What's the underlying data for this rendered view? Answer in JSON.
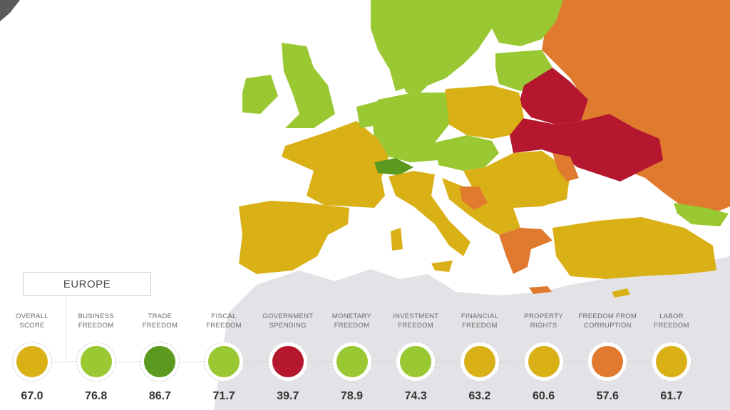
{
  "colors": {
    "water": "#ffffff",
    "non_europe_land": "#e3e3e7",
    "mostly_free": "#9ac832",
    "free": "#5a9a1e",
    "moderately_free": "#dab017",
    "mostly_unfree": "#e07a2e",
    "repressed": "#b5172f"
  },
  "region": {
    "name": "EUROPE"
  },
  "indicators": [
    {
      "label_line1": "OVERALL",
      "label_line2": "SCORE",
      "score": "67.0",
      "color": "#dab017"
    },
    {
      "label_line1": "BUSINESS",
      "label_line2": "FREEDOM",
      "score": "76.8",
      "color": "#9ac832"
    },
    {
      "label_line1": "TRADE",
      "label_line2": "FREEDOM",
      "score": "86.7",
      "color": "#5a9a1e"
    },
    {
      "label_line1": "FISCAL",
      "label_line2": "FREEDOM",
      "score": "71.7",
      "color": "#9ac832"
    },
    {
      "label_line1": "GOVERNMENT",
      "label_line2": "SPENDING",
      "score": "39.7",
      "color": "#b5172f"
    },
    {
      "label_line1": "MONETARY",
      "label_line2": "FREEDOM",
      "score": "78.9",
      "color": "#9ac832"
    },
    {
      "label_line1": "INVESTMENT",
      "label_line2": "FREEDOM",
      "score": "74.3",
      "color": "#9ac832"
    },
    {
      "label_line1": "FINANCIAL",
      "label_line2": "FREEDOM",
      "score": "63.2",
      "color": "#dab017"
    },
    {
      "label_line1": "PROPERTY",
      "label_line2": "RIGHTS",
      "score": "60.6",
      "color": "#dab017"
    },
    {
      "label_line1": "FREEDOM FROM",
      "label_line2": "CORRUPTION",
      "score": "57.6",
      "color": "#e07a2e"
    },
    {
      "label_line1": "LABOR",
      "label_line2": "FREEDOM",
      "score": "61.7",
      "color": "#dab017"
    }
  ]
}
